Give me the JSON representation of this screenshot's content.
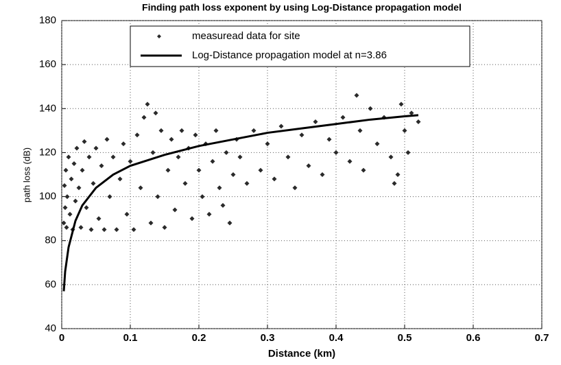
{
  "chart_data": {
    "type": "scatter",
    "title": "Finding path loss exponent by using Log-Distance propagation model",
    "x_label": "Distance (km)",
    "y_label": "path loss (dB)",
    "xlim": [
      0,
      0.7
    ],
    "xticks": [
      0,
      0.1,
      0.2,
      0.3,
      0.4,
      0.5,
      0.6,
      0.7
    ],
    "ylim": [
      40,
      180
    ],
    "yticks": [
      40,
      60,
      80,
      100,
      120,
      140,
      160,
      180
    ],
    "grid": true,
    "legend": "top",
    "series": [
      {
        "name": "measuread data for site",
        "mode": "markers",
        "color": "#2a2a2a",
        "x": [
          0.003,
          0.004,
          0.005,
          0.006,
          0.007,
          0.008,
          0.01,
          0.012,
          0.014,
          0.016,
          0.018,
          0.02,
          0.022,
          0.025,
          0.028,
          0.03,
          0.033,
          0.036,
          0.04,
          0.043,
          0.046,
          0.05,
          0.054,
          0.058,
          0.062,
          0.066,
          0.07,
          0.075,
          0.08,
          0.085,
          0.09,
          0.095,
          0.1,
          0.105,
          0.11,
          0.115,
          0.12,
          0.125,
          0.13,
          0.133,
          0.137,
          0.14,
          0.145,
          0.15,
          0.155,
          0.16,
          0.165,
          0.17,
          0.175,
          0.18,
          0.185,
          0.19,
          0.195,
          0.2,
          0.205,
          0.21,
          0.215,
          0.22,
          0.225,
          0.23,
          0.235,
          0.24,
          0.245,
          0.25,
          0.255,
          0.26,
          0.27,
          0.28,
          0.29,
          0.3,
          0.31,
          0.32,
          0.33,
          0.34,
          0.35,
          0.36,
          0.37,
          0.38,
          0.39,
          0.4,
          0.41,
          0.42,
          0.43,
          0.435,
          0.44,
          0.45,
          0.46,
          0.47,
          0.48,
          0.485,
          0.49,
          0.495,
          0.5,
          0.505,
          0.51,
          0.52
        ],
        "values": [
          88,
          105,
          95,
          112,
          86,
          100,
          118,
          92,
          108,
          85,
          115,
          98,
          122,
          104,
          86,
          112,
          125,
          95,
          118,
          85,
          106,
          122,
          90,
          114,
          85,
          126,
          100,
          118,
          85,
          108,
          124,
          92,
          116,
          85,
          128,
          104,
          136,
          142,
          88,
          120,
          138,
          100,
          130,
          86,
          112,
          126,
          94,
          118,
          130,
          106,
          122,
          90,
          128,
          112,
          100,
          124,
          92,
          116,
          130,
          104,
          96,
          120,
          88,
          110,
          126,
          118,
          106,
          130,
          112,
          124,
          108,
          132,
          118,
          104,
          128,
          114,
          134,
          110,
          126,
          120,
          136,
          116,
          146,
          130,
          112,
          140,
          124,
          136,
          118,
          106,
          110,
          142,
          130,
          120,
          138,
          134
        ]
      },
      {
        "name": "Log-Distance propagation model at n=3.86",
        "mode": "lines",
        "color": "#000000",
        "x": [
          0.003,
          0.005,
          0.01,
          0.02,
          0.03,
          0.05,
          0.075,
          0.1,
          0.15,
          0.2,
          0.25,
          0.3,
          0.35,
          0.4,
          0.45,
          0.5,
          0.52
        ],
        "values": [
          57,
          66,
          77,
          89,
          96,
          104,
          110,
          114,
          119,
          123,
          126,
          129,
          131,
          133,
          135,
          136.5,
          137
        ]
      }
    ]
  }
}
